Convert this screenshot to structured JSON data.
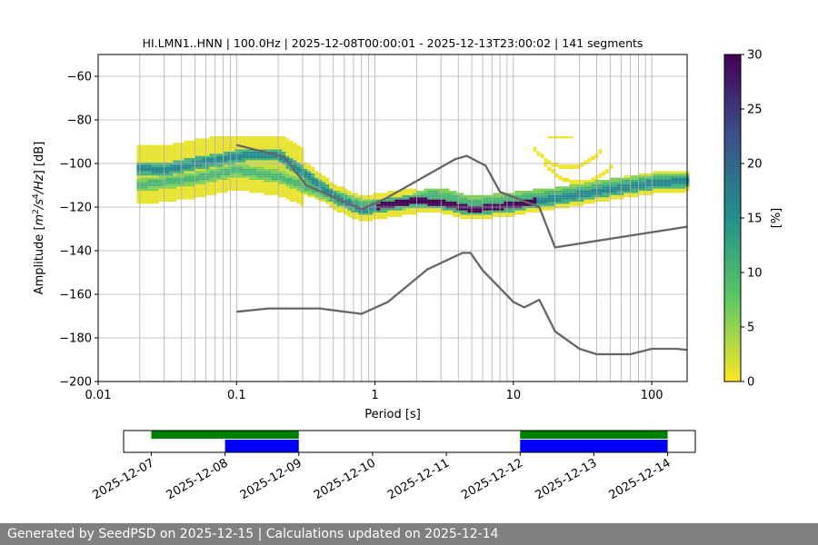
{
  "chart_data": [
    {
      "type": "heatmap",
      "title": "HI.LMN1..HNN | 100.0Hz | 2025-12-08T00:00:01 - 2025-12-13T23:00:02 | 141 segments",
      "xlabel": "Period [s]",
      "ylabel_parts": [
        "Amplitude [",
        "m",
        "2",
        "/s",
        "4",
        "/Hz",
        "] [dB]"
      ],
      "x_scale": "log",
      "xlim": [
        0.01,
        180
      ],
      "ylim": [
        -200,
        -50
      ],
      "x_ticks": [
        0.01,
        0.1,
        1,
        10,
        100
      ],
      "x_tick_labels": [
        "0.01",
        "0.1",
        "1",
        "10",
        "100"
      ],
      "y_ticks": [
        -200,
        -180,
        -160,
        -140,
        -120,
        -100,
        -80,
        -60
      ],
      "y_tick_labels": [
        "−200",
        "−180",
        "−160",
        "−140",
        "−120",
        "−100",
        "−80",
        "−60"
      ],
      "grid": "vertical, log-spaced",
      "colormap": "viridis",
      "colorbar": {
        "label": "[%]",
        "min": 0,
        "max": 30,
        "ticks": [
          0,
          5,
          10,
          15,
          20,
          25,
          30
        ]
      },
      "main_trend": [
        [
          0.019,
          -102
        ],
        [
          0.03,
          -103
        ],
        [
          0.05,
          -100
        ],
        [
          0.08,
          -98
        ],
        [
          0.12,
          -96
        ],
        [
          0.2,
          -96
        ],
        [
          0.3,
          -104
        ],
        [
          0.5,
          -115
        ],
        [
          0.8,
          -121
        ],
        [
          1.2,
          -119
        ],
        [
          2,
          -117
        ],
        [
          3,
          -118
        ],
        [
          5,
          -121
        ],
        [
          10,
          -119
        ],
        [
          20,
          -116
        ],
        [
          50,
          -112
        ],
        [
          100,
          -109
        ],
        [
          180,
          -108
        ]
      ],
      "secondary_trend": [
        [
          0.02,
          -110
        ],
        [
          0.05,
          -107
        ],
        [
          0.1,
          -103
        ],
        [
          0.2,
          -106
        ],
        [
          0.4,
          -113
        ],
        [
          0.8,
          -119
        ],
        [
          1.5,
          -119
        ],
        [
          2.5,
          -114
        ],
        [
          3.5,
          -115
        ],
        [
          5,
          -118
        ],
        [
          10,
          -116
        ],
        [
          20,
          -114
        ],
        [
          50,
          -110
        ],
        [
          100,
          -108
        ],
        [
          180,
          -107
        ]
      ],
      "microseism_peaks": [
        {
          "center": [
            22,
            -88
          ],
          "label": ""
        },
        {
          "center": [
            25,
            -102
          ],
          "label": ""
        },
        {
          "center": [
            30,
            -109
          ],
          "label": ""
        }
      ],
      "reference_curves": [
        {
          "name": "",
          "points": [
            [
              0.1,
              -91.5
            ],
            [
              0.22,
              -97
            ],
            [
              0.32,
              -110
            ],
            [
              0.8,
              -121
            ],
            [
              1.2,
              -116
            ],
            [
              3.8,
              -98
            ],
            [
              4.6,
              -96.5
            ],
            [
              6.3,
              -101
            ],
            [
              8,
              -113
            ],
            [
              15.4,
              -120
            ],
            [
              20,
              -138.5
            ],
            [
              180,
              -129
            ]
          ]
        },
        {
          "name": "",
          "points": [
            [
              0.1,
              -168
            ],
            [
              0.17,
              -166.5
            ],
            [
              0.4,
              -166.5
            ],
            [
              0.8,
              -169
            ],
            [
              1.24,
              -163.5
            ],
            [
              2.4,
              -148.5
            ],
            [
              4.3,
              -141
            ],
            [
              4.9,
              -141
            ],
            [
              6,
              -149
            ],
            [
              10,
              -163.5
            ],
            [
              12,
              -166
            ],
            [
              15.4,
              -162.5
            ],
            [
              20,
              -177
            ],
            [
              30,
              -185
            ],
            [
              40,
              -187.5
            ],
            [
              70,
              -187.5
            ],
            [
              100,
              -185
            ],
            [
              150,
              -185
            ],
            [
              180,
              -185.5
            ]
          ]
        }
      ]
    },
    {
      "type": "timeline",
      "x_ticks": [
        "2025-12-07",
        "2025-12-08",
        "2025-12-09",
        "2025-12-10",
        "2025-12-11",
        "2025-12-12",
        "2025-12-13",
        "2025-12-14"
      ],
      "range": [
        "2025-12-06T15:00",
        "2025-12-14T09:00"
      ],
      "available": [
        {
          "start": "2025-12-07T00:00",
          "end": "2025-12-09T00:00",
          "color": "#008000"
        },
        {
          "start": "2025-12-12T00:00",
          "end": "2025-12-14T00:00",
          "color": "#008000"
        }
      ],
      "used": [
        {
          "start": "2025-12-08T00:00",
          "end": "2025-12-09T00:00",
          "color": "#0000ff"
        },
        {
          "start": "2025-12-12T00:00",
          "end": "2025-12-14T00:00",
          "color": "#0000ff"
        }
      ]
    }
  ],
  "footer": "Generated by SeedPSD on 2025-12-15 | Calculations updated on 2025-12-14"
}
